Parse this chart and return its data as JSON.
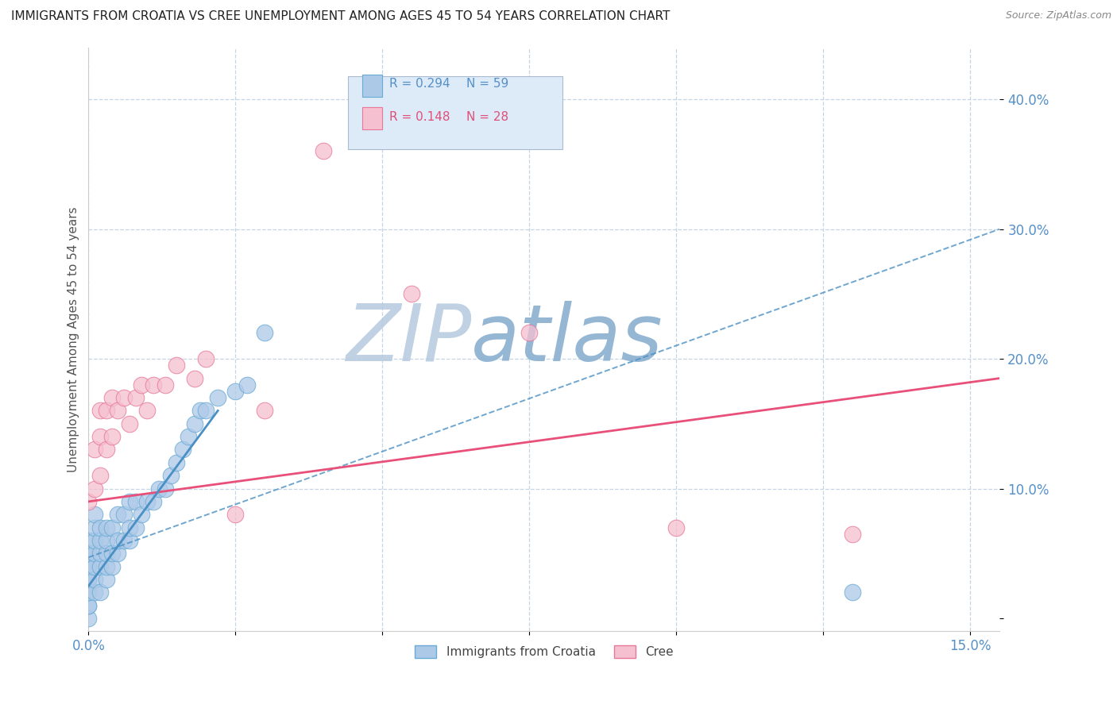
{
  "title": "IMMIGRANTS FROM CROATIA VS CREE UNEMPLOYMENT AMONG AGES 45 TO 54 YEARS CORRELATION CHART",
  "source": "Source: ZipAtlas.com",
  "xlim": [
    0.0,
    0.155
  ],
  "ylim": [
    -0.01,
    0.44
  ],
  "series1_name": "Immigrants from Croatia",
  "series1_R": "0.294",
  "series1_N": "59",
  "series1_color": "#adc9e8",
  "series1_edge": "#6aaad4",
  "series1_trendline_color": "#4a90c4",
  "series2_name": "Cree",
  "series2_R": "0.148",
  "series2_N": "28",
  "series2_color": "#f5c0d0",
  "series2_edge": "#e8789a",
  "series2_trendline_color": "#e8507a",
  "blue_scatter_x": [
    0.0,
    0.0,
    0.0,
    0.0,
    0.0,
    0.0,
    0.0,
    0.0,
    0.0,
    0.0,
    0.0,
    0.0,
    0.001,
    0.001,
    0.001,
    0.001,
    0.001,
    0.001,
    0.001,
    0.002,
    0.002,
    0.002,
    0.002,
    0.002,
    0.003,
    0.003,
    0.003,
    0.003,
    0.003,
    0.004,
    0.004,
    0.004,
    0.005,
    0.005,
    0.005,
    0.006,
    0.006,
    0.007,
    0.007,
    0.007,
    0.008,
    0.008,
    0.009,
    0.01,
    0.011,
    0.012,
    0.013,
    0.014,
    0.015,
    0.016,
    0.017,
    0.018,
    0.019,
    0.02,
    0.022,
    0.025,
    0.027,
    0.03,
    0.13
  ],
  "blue_scatter_y": [
    0.0,
    0.01,
    0.01,
    0.02,
    0.02,
    0.03,
    0.03,
    0.04,
    0.04,
    0.05,
    0.05,
    0.06,
    0.02,
    0.03,
    0.04,
    0.05,
    0.06,
    0.07,
    0.08,
    0.02,
    0.04,
    0.05,
    0.06,
    0.07,
    0.03,
    0.04,
    0.05,
    0.06,
    0.07,
    0.04,
    0.05,
    0.07,
    0.05,
    0.06,
    0.08,
    0.06,
    0.08,
    0.06,
    0.07,
    0.09,
    0.07,
    0.09,
    0.08,
    0.09,
    0.09,
    0.1,
    0.1,
    0.11,
    0.12,
    0.13,
    0.14,
    0.15,
    0.16,
    0.16,
    0.17,
    0.175,
    0.18,
    0.22,
    0.02
  ],
  "pink_scatter_x": [
    0.0,
    0.001,
    0.001,
    0.002,
    0.002,
    0.002,
    0.003,
    0.003,
    0.004,
    0.004,
    0.005,
    0.006,
    0.007,
    0.008,
    0.009,
    0.01,
    0.011,
    0.013,
    0.015,
    0.018,
    0.02,
    0.025,
    0.03,
    0.04,
    0.055,
    0.075,
    0.1,
    0.13
  ],
  "pink_scatter_y": [
    0.09,
    0.1,
    0.13,
    0.11,
    0.14,
    0.16,
    0.13,
    0.16,
    0.14,
    0.17,
    0.16,
    0.17,
    0.15,
    0.17,
    0.18,
    0.16,
    0.18,
    0.18,
    0.195,
    0.185,
    0.2,
    0.08,
    0.16,
    0.36,
    0.25,
    0.22,
    0.07,
    0.065
  ],
  "trend1_x0": 0.0,
  "trend1_y0": 0.047,
  "trend1_x1": 0.155,
  "trend1_y1": 0.3,
  "trend2_x0": 0.0,
  "trend2_y0": 0.09,
  "trend2_x1": 0.155,
  "trend2_y1": 0.185,
  "watermark_text": "ZIPatlas",
  "watermark_color": "#cddcec",
  "legend_box_color": "#ddeaf7",
  "legend_box_edge": "#aabbd0",
  "r1_color": "#5590c8",
  "r2_color": "#e0507a",
  "grid_color": "#c5d5e5",
  "tick_color": "#5590c8",
  "ylabel_color": "#555555",
  "title_color": "#222222",
  "source_color": "#888888"
}
